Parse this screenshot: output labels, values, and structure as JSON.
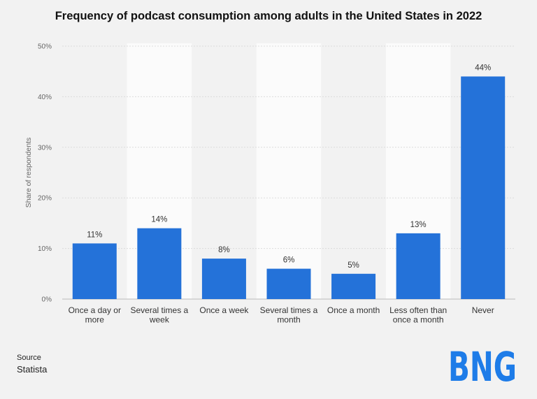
{
  "chart_data": {
    "type": "bar",
    "title": "Frequency of podcast consumption among adults in the United States in 2022",
    "categories": [
      [
        "Once a day or",
        "more"
      ],
      [
        "Several times a",
        "week"
      ],
      [
        "Once a week"
      ],
      [
        "Several times a",
        "month"
      ],
      [
        "Once a month"
      ],
      [
        "Less often than",
        "once a month"
      ],
      [
        "Never"
      ]
    ],
    "values": [
      11,
      14,
      8,
      6,
      5,
      13,
      44
    ],
    "value_labels": [
      "11%",
      "14%",
      "8%",
      "6%",
      "5%",
      "13%",
      "44%"
    ],
    "xlabel": "",
    "ylabel": "Share of respondents",
    "ylim": [
      0,
      50
    ],
    "yticks": [
      0,
      10,
      20,
      30,
      40,
      50
    ],
    "ytick_labels": [
      "0%",
      "10%",
      "20%",
      "30%",
      "40%",
      "50%"
    ],
    "grid": true,
    "bar_color": "#2472d9"
  },
  "source": {
    "label": "Source",
    "name": "Statista"
  },
  "logo": {
    "text": "BNG",
    "color": "#1e7ce8"
  }
}
